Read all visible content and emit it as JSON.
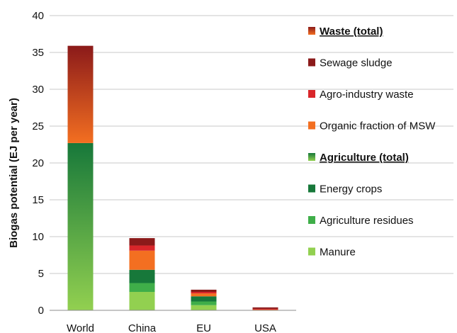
{
  "chart_data": {
    "type": "bar",
    "stacked": true,
    "ylabel": "Biogas potential (EJ per year)",
    "xlabel": "",
    "ylim": [
      0,
      40
    ],
    "yticks": [
      0,
      5,
      10,
      15,
      20,
      25,
      30,
      35,
      40
    ],
    "grid": true,
    "legend_position": "right",
    "categories": [
      "World",
      "China",
      "EU",
      "USA"
    ],
    "series": [
      {
        "name": "Manure",
        "color": "#92d050",
        "values": [
          null,
          2.5,
          0.7,
          null
        ]
      },
      {
        "name": "Agriculture residues",
        "color": "#3fae49",
        "values": [
          null,
          1.2,
          0.5,
          null
        ]
      },
      {
        "name": "Energy crops",
        "color": "#17783a",
        "values": [
          null,
          1.8,
          0.7,
          null
        ]
      },
      {
        "name": "Organic fraction of MSW",
        "color": "#f36f21",
        "values": [
          null,
          2.6,
          0.4,
          0.1
        ]
      },
      {
        "name": "Agro-industry waste",
        "color": "#d9262a",
        "values": [
          null,
          0.7,
          0.2,
          0.1
        ]
      },
      {
        "name": "Sewage sludge",
        "color": "#8b1a1a",
        "values": [
          null,
          1.0,
          0.3,
          0.2
        ]
      },
      {
        "name": "Agriculture (total)",
        "total": true,
        "color_top": "#17783a",
        "color_bottom": "#92d050",
        "values": [
          22.7,
          null,
          null,
          null
        ]
      },
      {
        "name": "Waste (total)",
        "total": true,
        "color_top": "#8b1a1a",
        "color_bottom": "#f36f21",
        "values": [
          13.2,
          null,
          null,
          null
        ]
      }
    ],
    "legend": [
      {
        "name": "Waste (total)",
        "bold": true,
        "color_top": "#8b1a1a",
        "color_bottom": "#f36f21"
      },
      {
        "name": "Sewage sludge",
        "bold": false,
        "color": "#8b1a1a"
      },
      {
        "name": "Agro-industry waste",
        "bold": false,
        "color": "#d9262a"
      },
      {
        "name": "Organic fraction of MSW",
        "bold": false,
        "color": "#f36f21"
      },
      {
        "name": "Agriculture (total)",
        "bold": true,
        "color_top": "#17783a",
        "color_bottom": "#92d050"
      },
      {
        "name": "Energy crops",
        "bold": false,
        "color": "#17783a"
      },
      {
        "name": "Agriculture residues",
        "bold": false,
        "color": "#3fae49"
      },
      {
        "name": "Manure",
        "bold": false,
        "color": "#92d050"
      }
    ]
  }
}
